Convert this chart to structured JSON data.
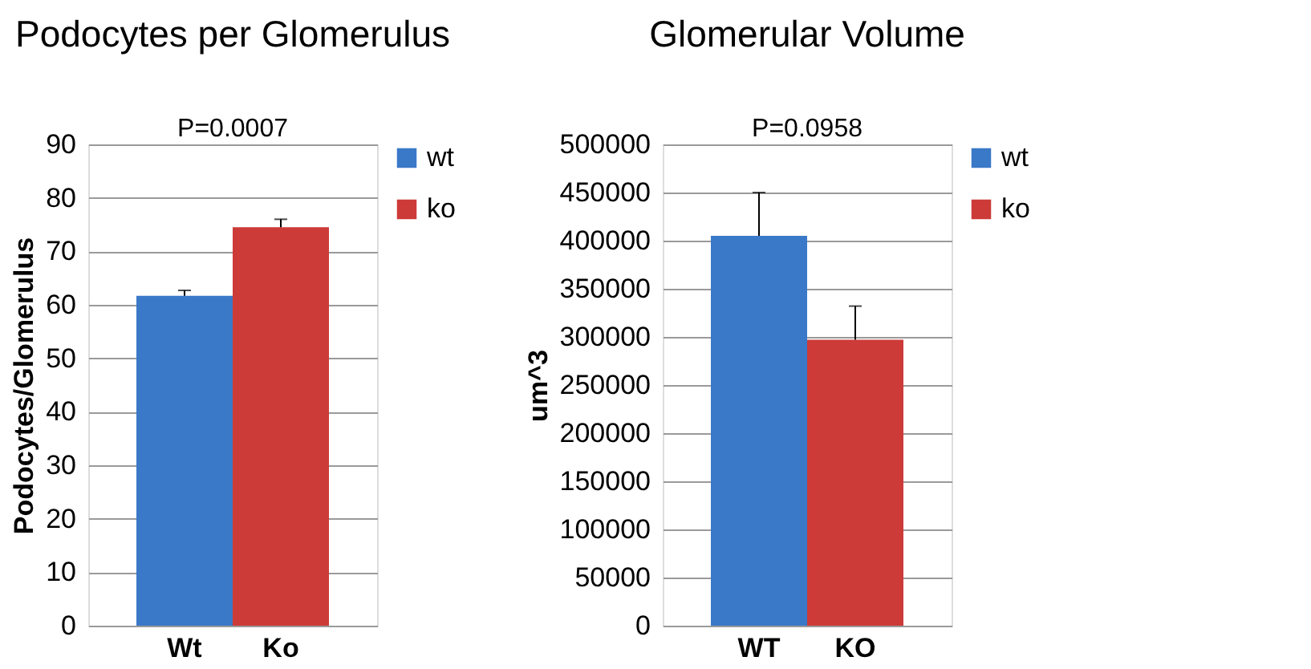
{
  "chart_data": [
    {
      "type": "bar",
      "title": "Podocytes per Glomerulus",
      "ylabel": "Podocytes/Glomerulus",
      "categories": [
        "Wt",
        "Ko"
      ],
      "ylim": [
        0,
        90
      ],
      "yticks": [
        0,
        10,
        20,
        30,
        40,
        50,
        60,
        70,
        80,
        90
      ],
      "grid": "y",
      "legend": "right",
      "annotations": [
        "P=0.0007"
      ],
      "series": [
        {
          "name": "wt",
          "color": "#3a78c8",
          "values": [
            61.7,
            null
          ],
          "errors": [
            [
              61.7,
              62.7
            ],
            null
          ]
        },
        {
          "name": "ko",
          "color": "#cc3b38",
          "values": [
            null,
            74.5
          ],
          "errors": [
            null,
            [
              74.5,
              76
            ]
          ]
        }
      ]
    },
    {
      "type": "bar",
      "title": "Glomerular Volume",
      "ylabel": "um^3",
      "categories": [
        "WT",
        "KO"
      ],
      "ylim": [
        0,
        500000
      ],
      "yticks": [
        0,
        50000,
        100000,
        150000,
        200000,
        250000,
        300000,
        350000,
        400000,
        450000,
        500000
      ],
      "grid": "y",
      "legend": "right",
      "annotations": [
        "P=0.0958"
      ],
      "series": [
        {
          "name": "wt",
          "color": "#3a78c8",
          "values": [
            405000,
            null
          ],
          "errors": [
            [
              405000,
              450000
            ],
            null
          ]
        },
        {
          "name": "ko",
          "color": "#cc3b38",
          "values": [
            null,
            297000
          ],
          "errors": [
            null,
            [
              297000,
              332000
            ]
          ]
        }
      ]
    }
  ]
}
